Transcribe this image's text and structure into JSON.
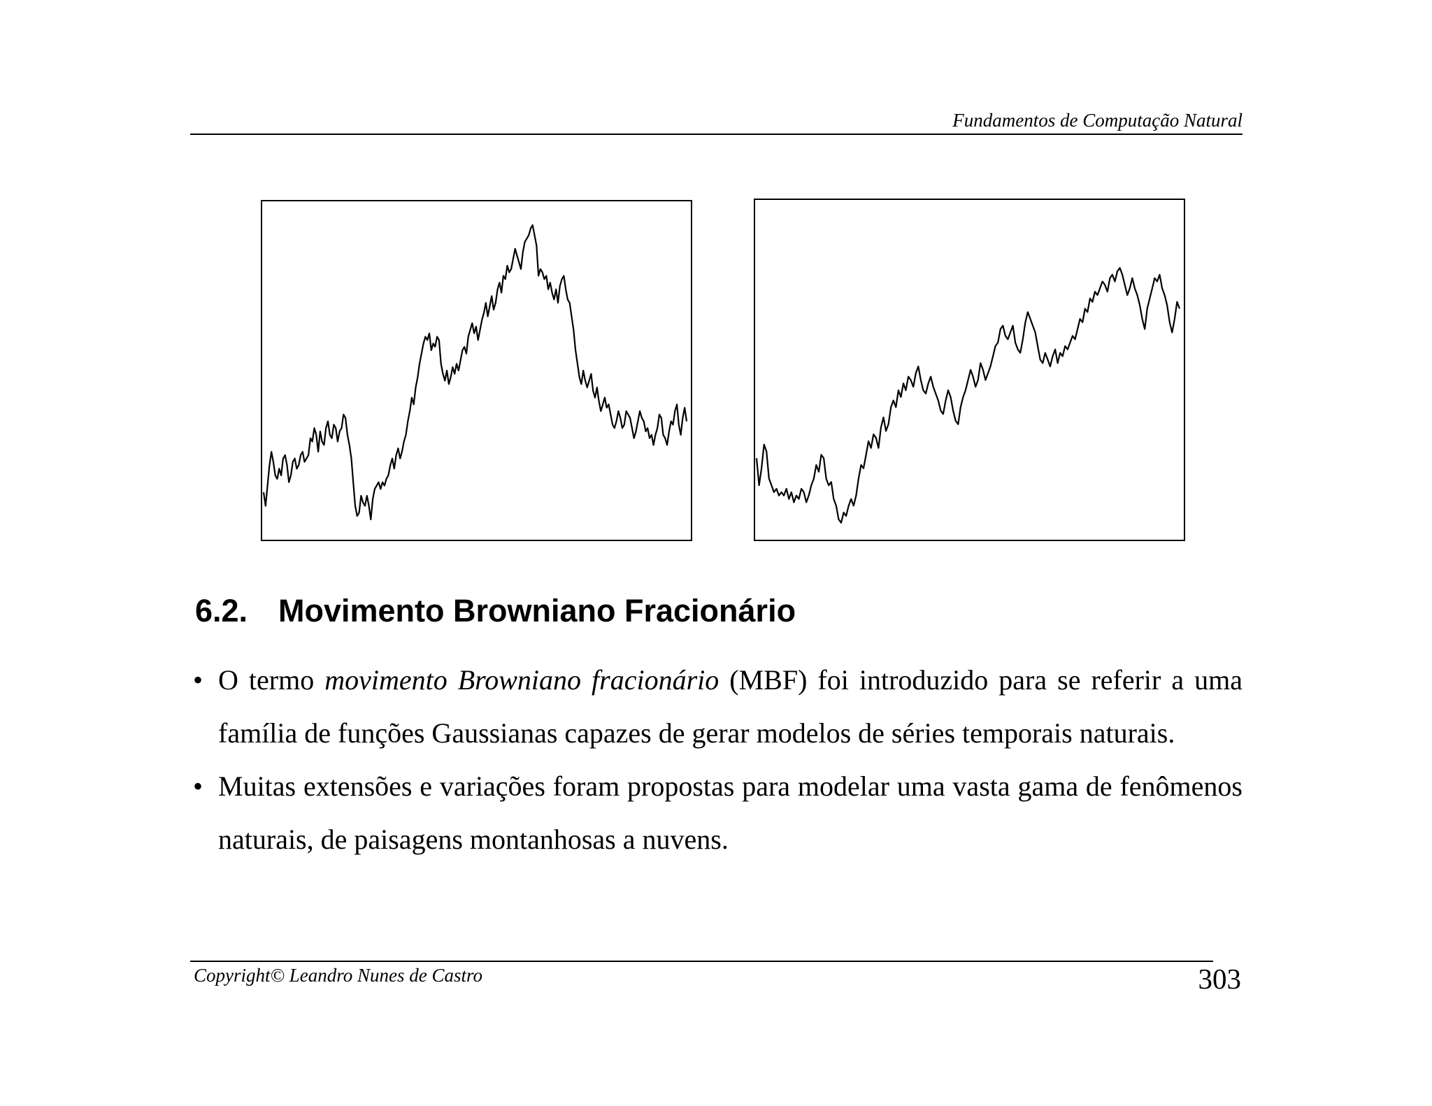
{
  "header": {
    "title": "Fundamentos de Computação Natural"
  },
  "figures": [
    {
      "name": "left-plot",
      "values": [
        0.14,
        0.1,
        0.16,
        0.22,
        0.26,
        0.23,
        0.19,
        0.18,
        0.21,
        0.19,
        0.24,
        0.25,
        0.22,
        0.17,
        0.19,
        0.23,
        0.24,
        0.21,
        0.22,
        0.25,
        0.26,
        0.23,
        0.24,
        0.25,
        0.3,
        0.29,
        0.33,
        0.31,
        0.26,
        0.32,
        0.29,
        0.28,
        0.33,
        0.35,
        0.31,
        0.3,
        0.34,
        0.33,
        0.29,
        0.32,
        0.33,
        0.37,
        0.36,
        0.31,
        0.28,
        0.24,
        0.17,
        0.1,
        0.07,
        0.08,
        0.13,
        0.11,
        0.1,
        0.13,
        0.1,
        0.06,
        0.12,
        0.15,
        0.16,
        0.17,
        0.15,
        0.17,
        0.16,
        0.18,
        0.19,
        0.22,
        0.24,
        0.21,
        0.25,
        0.27,
        0.24,
        0.26,
        0.29,
        0.31,
        0.35,
        0.38,
        0.42,
        0.4,
        0.45,
        0.48,
        0.52,
        0.55,
        0.58,
        0.6,
        0.59,
        0.61,
        0.56,
        0.58,
        0.57,
        0.6,
        0.59,
        0.52,
        0.49,
        0.47,
        0.5,
        0.46,
        0.48,
        0.51,
        0.49,
        0.52,
        0.5,
        0.53,
        0.56,
        0.57,
        0.55,
        0.6,
        0.62,
        0.64,
        0.61,
        0.63,
        0.59,
        0.62,
        0.65,
        0.67,
        0.7,
        0.66,
        0.69,
        0.72,
        0.68,
        0.7,
        0.74,
        0.76,
        0.73,
        0.78,
        0.77,
        0.81,
        0.79,
        0.8,
        0.83,
        0.86,
        0.84,
        0.82,
        0.8,
        0.85,
        0.88,
        0.89,
        0.9,
        0.92,
        0.93,
        0.9,
        0.87,
        0.78,
        0.8,
        0.79,
        0.77,
        0.78,
        0.74,
        0.76,
        0.73,
        0.71,
        0.74,
        0.7,
        0.75,
        0.77,
        0.78,
        0.74,
        0.71,
        0.7,
        0.66,
        0.62,
        0.56,
        0.52,
        0.48,
        0.46,
        0.5,
        0.47,
        0.45,
        0.47,
        0.49,
        0.44,
        0.42,
        0.45,
        0.41,
        0.38,
        0.4,
        0.42,
        0.39,
        0.4,
        0.37,
        0.34,
        0.33,
        0.35,
        0.38,
        0.36,
        0.33,
        0.34,
        0.38,
        0.37,
        0.36,
        0.33,
        0.3,
        0.32,
        0.35,
        0.38,
        0.36,
        0.35,
        0.32,
        0.33,
        0.3,
        0.31,
        0.28,
        0.31,
        0.33,
        0.37,
        0.36,
        0.31,
        0.3,
        0.28,
        0.32,
        0.35,
        0.34,
        0.38,
        0.4,
        0.34,
        0.31,
        0.36,
        0.39,
        0.35
      ]
    },
    {
      "name": "right-plot",
      "values": [
        0.24,
        0.16,
        0.21,
        0.28,
        0.26,
        0.18,
        0.16,
        0.14,
        0.15,
        0.13,
        0.14,
        0.13,
        0.15,
        0.12,
        0.14,
        0.11,
        0.13,
        0.12,
        0.15,
        0.14,
        0.11,
        0.13,
        0.16,
        0.18,
        0.22,
        0.2,
        0.25,
        0.24,
        0.18,
        0.16,
        0.17,
        0.12,
        0.1,
        0.06,
        0.05,
        0.08,
        0.07,
        0.1,
        0.12,
        0.1,
        0.13,
        0.18,
        0.22,
        0.21,
        0.25,
        0.29,
        0.27,
        0.31,
        0.3,
        0.27,
        0.33,
        0.36,
        0.32,
        0.34,
        0.39,
        0.41,
        0.39,
        0.44,
        0.42,
        0.46,
        0.44,
        0.48,
        0.47,
        0.45,
        0.49,
        0.51,
        0.47,
        0.44,
        0.43,
        0.46,
        0.48,
        0.45,
        0.43,
        0.41,
        0.38,
        0.37,
        0.41,
        0.44,
        0.42,
        0.38,
        0.35,
        0.34,
        0.39,
        0.42,
        0.44,
        0.47,
        0.5,
        0.48,
        0.45,
        0.47,
        0.52,
        0.5,
        0.47,
        0.49,
        0.51,
        0.54,
        0.57,
        0.58,
        0.62,
        0.63,
        0.6,
        0.59,
        0.61,
        0.63,
        0.58,
        0.56,
        0.55,
        0.59,
        0.64,
        0.67,
        0.65,
        0.63,
        0.61,
        0.57,
        0.53,
        0.52,
        0.55,
        0.53,
        0.51,
        0.54,
        0.56,
        0.52,
        0.55,
        0.54,
        0.57,
        0.56,
        0.58,
        0.6,
        0.59,
        0.62,
        0.65,
        0.64,
        0.68,
        0.67,
        0.71,
        0.7,
        0.73,
        0.72,
        0.74,
        0.76,
        0.75,
        0.73,
        0.77,
        0.78,
        0.76,
        0.79,
        0.8,
        0.78,
        0.75,
        0.72,
        0.74,
        0.77,
        0.74,
        0.72,
        0.69,
        0.65,
        0.62,
        0.68,
        0.71,
        0.74,
        0.77,
        0.76,
        0.78,
        0.74,
        0.72,
        0.69,
        0.64,
        0.61,
        0.65,
        0.7,
        0.68
      ]
    }
  ],
  "section": {
    "number": "6.2.",
    "title": "Movimento Browniano Fracionário"
  },
  "bullets": [
    {
      "pre": "O termo ",
      "em": "movimento Browniano fracionário",
      "post": " (MBF) foi introduzido para se referir a uma família de funções Gaussianas capazes de gerar modelos de séries temporais naturais."
    },
    {
      "pre": "Muitas extensões e variações foram propostas para modelar uma vasta gama de fenômenos naturais, de paisagens montanhosas a nuvens.",
      "em": "",
      "post": ""
    }
  ],
  "footer": {
    "copyright": "Copyright© Leandro Nunes de Castro",
    "page_number": "303"
  }
}
